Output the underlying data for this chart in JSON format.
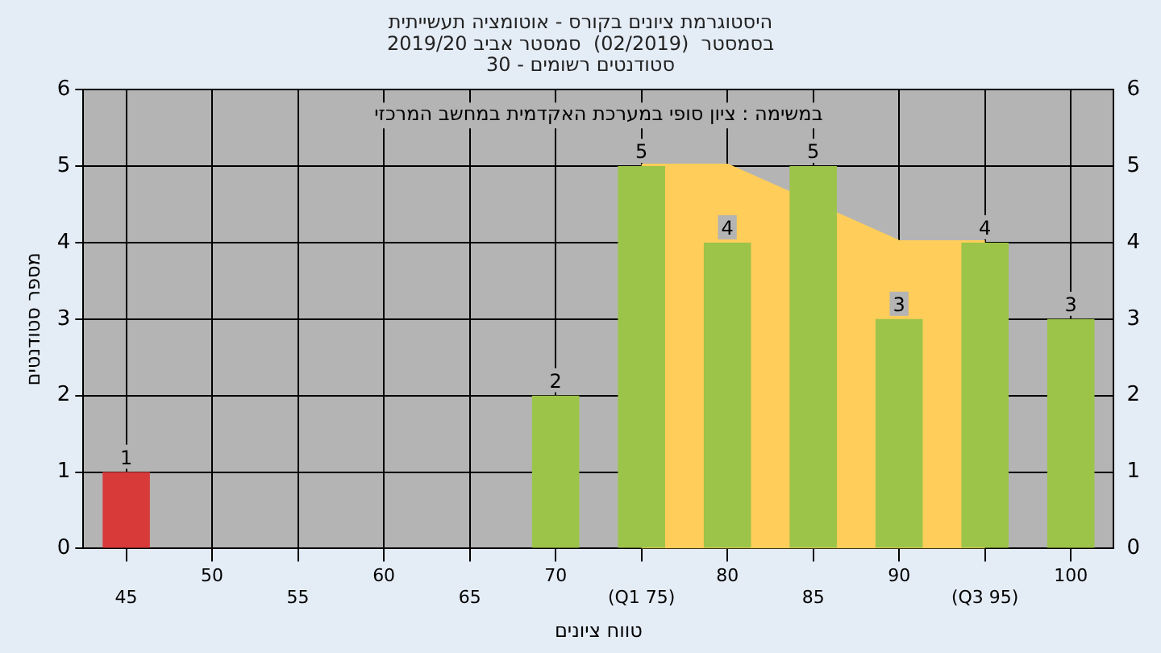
{
  "chart_data": {
    "type": "bar",
    "title": [
      "היסטוגרמת ציונים בקורס - אוטומציה תעשייתית",
      "בסמסטר  (02/2019)  סמסטר אביב 2019/20",
      "סטודנטים רשומים - 30"
    ],
    "xlabel": "טווח ציונים",
    "ylabel": "מספר סטודנטים",
    "categories": [
      "45",
      "50",
      "55",
      "60",
      "65",
      "70",
      "(Q1 75)",
      "80",
      "85",
      "90",
      "(Q3 95)",
      "100"
    ],
    "series": [
      {
        "values": [
          1,
          0,
          0,
          0,
          0,
          2,
          5,
          4,
          5,
          3,
          4,
          3
        ],
        "colors": [
          "#d83a3a",
          "#9cc448",
          "#9cc448",
          "#9cc448",
          "#9cc448",
          "#9cc448",
          "#9cc448",
          "#9cc448",
          "#9cc448",
          "#9cc448",
          "#9cc448",
          "#9cc448"
        ],
        "value_labels": [
          "1",
          null,
          null,
          null,
          null,
          "2",
          "5",
          "4",
          "5",
          "3",
          "4",
          "3"
        ]
      },
      {
        "type": "area",
        "color": "#fecd5a",
        "values": [
          null,
          null,
          null,
          null,
          null,
          null,
          5,
          5,
          null,
          4,
          4,
          null
        ]
      }
    ],
    "ylim": [
      0,
      6
    ],
    "yticks": [
      0,
      1,
      2,
      3,
      4,
      5,
      6
    ],
    "y2lim": [
      0,
      6
    ],
    "y2ticks": [
      0,
      1,
      2,
      3,
      4,
      5,
      6
    ],
    "annotations": [
      "במשימה : ציון סופי במערכת האקדמית במחשב המרכזי"
    ],
    "grid": true,
    "legend": false
  }
}
